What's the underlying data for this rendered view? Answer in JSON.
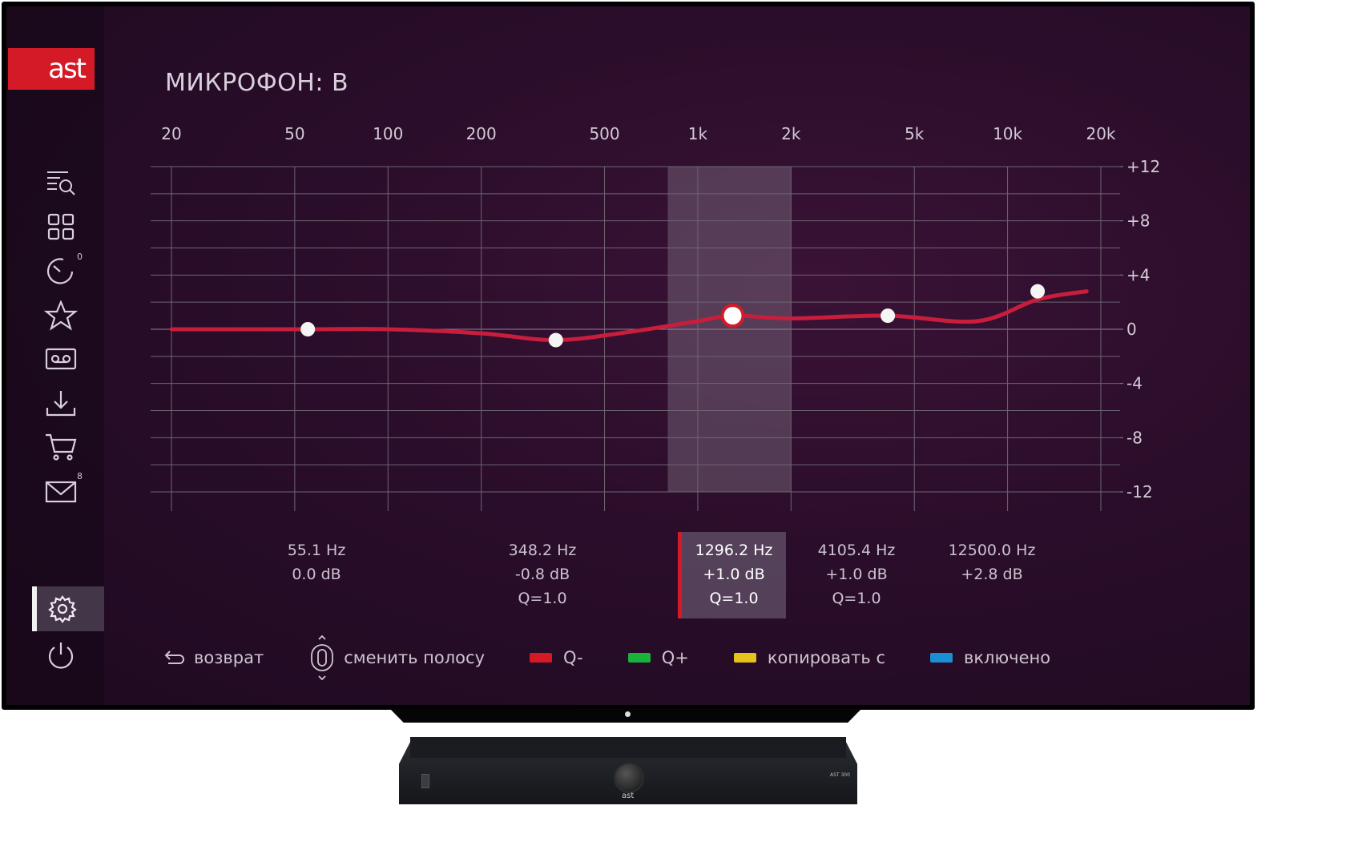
{
  "app": {
    "logo_text": "ast",
    "page_title": "МИКРОФОН: В"
  },
  "sidebar": {
    "items": [
      {
        "icon": "search-list-icon"
      },
      {
        "icon": "grid-icon"
      },
      {
        "icon": "timer-icon",
        "badge": "0"
      },
      {
        "icon": "star-icon"
      },
      {
        "icon": "cassette-icon"
      },
      {
        "icon": "download-icon"
      },
      {
        "icon": "cart-icon"
      },
      {
        "icon": "mail-icon",
        "badge": "8"
      },
      {
        "icon": "gear-icon",
        "selected": true
      },
      {
        "icon": "power-icon"
      }
    ]
  },
  "chart_data": {
    "type": "line",
    "x_scale": "log",
    "x_ticks": [
      "20",
      "50",
      "100",
      "200",
      "500",
      "1k",
      "2k",
      "5k",
      "10k",
      "20k"
    ],
    "x_tick_values": [
      20,
      50,
      100,
      200,
      500,
      1000,
      2000,
      5000,
      10000,
      20000
    ],
    "y_ticks": [
      "+12",
      "+8",
      "+4",
      "0",
      "-4",
      "-8",
      "-12"
    ],
    "y_tick_values": [
      12,
      8,
      4,
      0,
      -4,
      -8,
      -12
    ],
    "ylim": [
      -12,
      12
    ],
    "xlim": [
      20,
      20000
    ],
    "selected_band_range_hz": [
      800,
      2000
    ],
    "curve_color": "#c81e3c",
    "curve": {
      "x": [
        20,
        55.1,
        100,
        200,
        348.2,
        600,
        1000,
        1296.2,
        2000,
        4105.4,
        8000,
        12500,
        18000
      ],
      "y": [
        0.0,
        0.0,
        0.0,
        -0.3,
        -0.8,
        -0.2,
        0.6,
        1.0,
        0.8,
        1.0,
        0.6,
        2.2,
        2.8
      ]
    },
    "bands": [
      {
        "freq": 55.1,
        "gain": 0.0,
        "freq_label": "55.1 Hz",
        "gain_label": "0.0 dB"
      },
      {
        "freq": 348.2,
        "gain": -0.8,
        "freq_label": "348.2 Hz",
        "gain_label": "-0.8 dB",
        "q_label": "Q=1.0"
      },
      {
        "freq": 1296.2,
        "gain": 1.0,
        "freq_label": "1296.2 Hz",
        "gain_label": "+1.0 dB",
        "q_label": "Q=1.0",
        "selected": true
      },
      {
        "freq": 4105.4,
        "gain": 1.0,
        "freq_label": "4105.4 Hz",
        "gain_label": "+1.0 dB",
        "q_label": "Q=1.0"
      },
      {
        "freq": 12500.0,
        "gain": 2.8,
        "freq_label": "12500.0 Hz",
        "gain_label": "+2.8 dB"
      }
    ]
  },
  "footer": {
    "back_label": "возврат",
    "switch_band_label": "сменить полосу",
    "red_label": "Q-",
    "green_label": "Q+",
    "yellow_label": "копировать с",
    "blue_label": "включено",
    "colors": {
      "red": "#d41a27",
      "green": "#19b23a",
      "yellow": "#e7c21a",
      "blue": "#1a8fd4"
    }
  },
  "device": {
    "brand": "ast",
    "model": "AST 300"
  }
}
